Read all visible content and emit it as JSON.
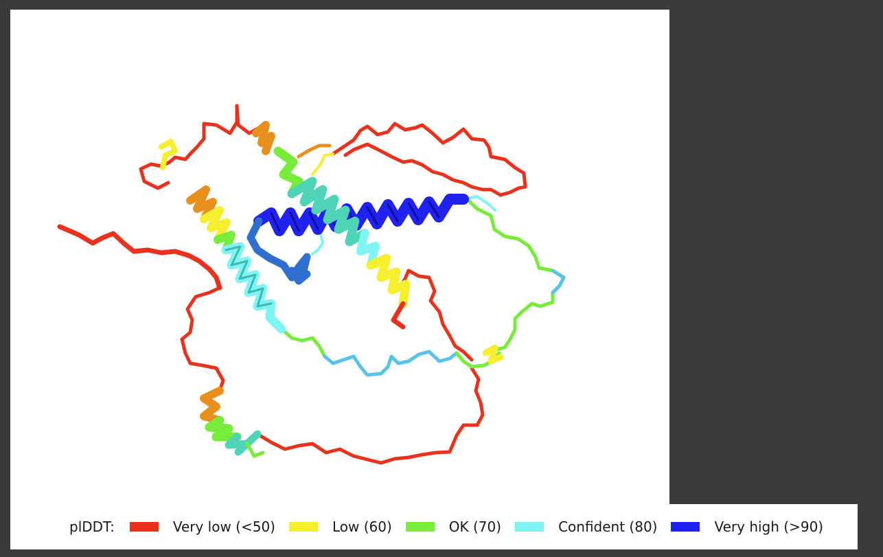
{
  "legend": {
    "title": "plDDT:",
    "items": [
      {
        "label": "Very low (<50)",
        "color": "#e8321e"
      },
      {
        "label": "Low (60)",
        "color": "#f5ef2e"
      },
      {
        "label": "OK (70)",
        "color": "#77ec3a"
      },
      {
        "label": "Confident (80)",
        "color": "#7ff4f4"
      },
      {
        "label": "Very high (>90)",
        "color": "#2121f2"
      }
    ]
  },
  "colors": {
    "background": "#3a3a3a",
    "panel": "#ffffff",
    "very_low": "#e8321e",
    "very_low_dark": "#c42a18",
    "orange": "#e8901e",
    "low": "#f5ef2e",
    "ok": "#77ec3a",
    "teal": "#4fd4b8",
    "confident": "#7ff4f4",
    "sky": "#56c4e8",
    "steel": "#2f6fd0",
    "very_high": "#2121f2"
  }
}
